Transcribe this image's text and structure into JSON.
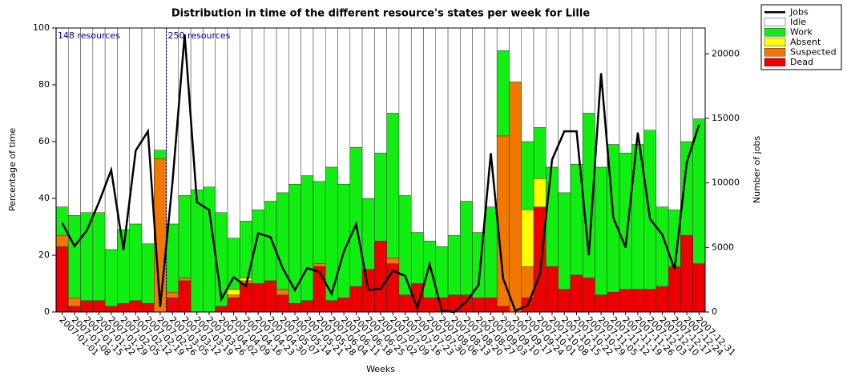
{
  "chart_data": {
    "type": "bar",
    "title": "Distribution in time of the different resource's states per week for Lille",
    "x_label": "Weeks",
    "y_label": "Percentage of time",
    "y2_label": "Number of jobs",
    "categories": [
      "2007-01-01",
      "2007-01-08",
      "2007-01-15",
      "2007-01-22",
      "2007-01-29",
      "2007-02-05",
      "2007-02-12",
      "2007-02-19",
      "2007-02-26",
      "2007-03-05",
      "2007-03-12",
      "2007-03-19",
      "2007-03-26",
      "2007-04-02",
      "2007-04-09",
      "2007-04-16",
      "2007-04-23",
      "2007-04-30",
      "2007-05-07",
      "2007-05-14",
      "2007-05-21",
      "2007-05-28",
      "2007-06-04",
      "2007-06-11",
      "2007-06-18",
      "2007-06-25",
      "2007-07-02",
      "2007-07-09",
      "2007-07-16",
      "2007-07-23",
      "2007-07-30",
      "2007-08-06",
      "2007-08-13",
      "2007-08-20",
      "2007-08-27",
      "2007-09-03",
      "2007-09-10",
      "2007-09-17",
      "2007-09-24",
      "2007-10-01",
      "2007-10-08",
      "2007-10-15",
      "2007-10-22",
      "2007-10-29",
      "2007-11-05",
      "2007-11-12",
      "2007-11-19",
      "2007-11-26",
      "2007-12-03",
      "2007-12-10",
      "2007-12-17",
      "2007-12-24",
      "2007-12-31"
    ],
    "series": [
      {
        "name": "Jobs",
        "type": "line",
        "axis": "y2",
        "color": "#000000",
        "values": [
          6900,
          5100,
          6300,
          8500,
          11000,
          4800,
          12500,
          14000,
          400,
          10000,
          21500,
          8500,
          7900,
          1000,
          2700,
          2000,
          6100,
          5800,
          3400,
          1700,
          3400,
          3100,
          1400,
          4700,
          6800,
          1700,
          1800,
          3200,
          2800,
          300,
          3700,
          100,
          0,
          800,
          2100,
          12300,
          2600,
          100,
          500,
          2900,
          11800,
          14000,
          14000,
          4400,
          18500,
          7300,
          5000,
          13900,
          7200,
          6000,
          3300,
          11600,
          14500
        ]
      },
      {
        "name": "Idle",
        "color": "#ffffff",
        "values": [
          63,
          66,
          65,
          65,
          78,
          71,
          69,
          76,
          43,
          69,
          59,
          57,
          56,
          65,
          74,
          68,
          64,
          61,
          58,
          55,
          52,
          54,
          49,
          55,
          42,
          60,
          44,
          30,
          59,
          72,
          75,
          77,
          73,
          61,
          72,
          63,
          8,
          19,
          40,
          35,
          49,
          58,
          48,
          30,
          49,
          41,
          44,
          41,
          36,
          63,
          64,
          40,
          32
        ]
      },
      {
        "name": "Work",
        "color": "#11ee11",
        "values": [
          10,
          29,
          31,
          31,
          20,
          26,
          27,
          21,
          3,
          24,
          29,
          43,
          44,
          33,
          18,
          20,
          26,
          28,
          34,
          42,
          44,
          29,
          47,
          40,
          49,
          25,
          31,
          51,
          35,
          18,
          20,
          18,
          21,
          33,
          23,
          32,
          30,
          0,
          24,
          18,
          35,
          34,
          39,
          58,
          45,
          52,
          48,
          51,
          56,
          28,
          20,
          33,
          51
        ]
      },
      {
        "name": "Absent",
        "color": "#ffff00",
        "values": [
          0,
          0,
          0,
          0,
          0,
          0,
          0,
          0,
          0,
          0,
          0,
          0,
          0,
          0,
          2,
          1,
          0,
          0,
          0,
          0,
          0,
          0,
          0,
          0,
          0,
          0,
          0,
          0,
          0,
          0,
          0,
          0,
          0,
          0,
          0,
          0,
          0,
          0,
          20,
          10,
          0,
          0,
          0,
          0,
          0,
          0,
          0,
          0,
          0,
          0,
          0,
          0,
          0
        ]
      },
      {
        "name": "Suspected",
        "color": "#f07800",
        "values": [
          4,
          3,
          0,
          0,
          0,
          0,
          0,
          0,
          54,
          2,
          1,
          0,
          0,
          0,
          1,
          1,
          0,
          0,
          2,
          0,
          0,
          1,
          0,
          0,
          0,
          0,
          0,
          2,
          0,
          0,
          0,
          0,
          0,
          0,
          0,
          0,
          60,
          81,
          11,
          0,
          0,
          0,
          0,
          0,
          0,
          0,
          0,
          0,
          0,
          0,
          0,
          0,
          0
        ]
      },
      {
        "name": "Dead",
        "color": "#ee0000",
        "values": [
          23,
          2,
          4,
          4,
          2,
          3,
          4,
          3,
          0,
          5,
          11,
          0,
          0,
          2,
          5,
          10,
          10,
          11,
          6,
          3,
          4,
          16,
          4,
          5,
          9,
          15,
          25,
          17,
          6,
          10,
          5,
          5,
          6,
          6,
          5,
          5,
          2,
          0,
          5,
          37,
          16,
          8,
          13,
          12,
          6,
          7,
          8,
          8,
          8,
          9,
          16,
          27,
          17
        ]
      }
    ],
    "annotations": [
      {
        "label": "148 resources",
        "category": "2007-01-01"
      },
      {
        "label": "250 resources",
        "category": "2007-03-05"
      }
    ],
    "ylim": [
      0,
      100
    ],
    "yticks": [
      0,
      20,
      40,
      60,
      80,
      100
    ],
    "y2lim": [
      0,
      22000
    ],
    "y2ticks": [
      0,
      5000,
      10000,
      15000,
      20000
    ],
    "stacked": true,
    "grid": false,
    "legend": "outside-top-right"
  }
}
